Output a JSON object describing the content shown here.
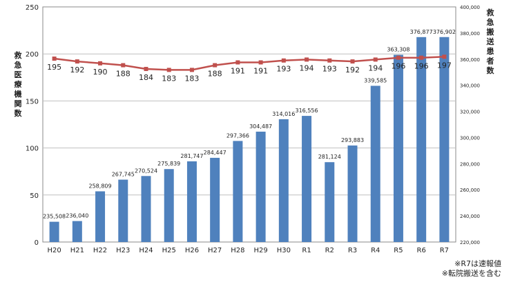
{
  "chart_data": {
    "type": "bar+line",
    "categories": [
      "H20",
      "H21",
      "H22",
      "H23",
      "H24",
      "H25",
      "H26",
      "H27",
      "H28",
      "H29",
      "H30",
      "R1",
      "R2",
      "R3",
      "R4",
      "R5",
      "R6",
      "R7"
    ],
    "bar_series": {
      "values": [
        235508,
        236040,
        258809,
        267745,
        270524,
        275839,
        281747,
        284447,
        297366,
        304487,
        314016,
        316556,
        281124,
        293883,
        339585,
        363308,
        376877,
        376902
      ],
      "labels": [
        "235,508",
        "236,040",
        "258,809",
        "267,745",
        "270,524",
        "275,839",
        "281,747",
        "284,447",
        "297,366",
        "304,487",
        "314,016",
        "316,556",
        "281,124",
        "293,883",
        "339,585",
        "363,308",
        "376,877",
        "376,902"
      ],
      "color": "#4F81BD",
      "axis": "right"
    },
    "line_series": {
      "values": [
        195,
        192,
        190,
        188,
        184,
        183,
        183,
        188,
        191,
        191,
        193,
        194,
        193,
        192,
        194,
        196,
        196,
        197
      ],
      "color": "#C0504D",
      "axis": "left"
    },
    "left_axis": {
      "title": "救急医療機関数",
      "min": 0,
      "max": 250,
      "ticks": [
        "0",
        "50",
        "100",
        "150",
        "200",
        "250"
      ]
    },
    "right_axis": {
      "title": "救急搬送患者数",
      "min": 220000,
      "max": 400000,
      "ticks": [
        "220,000",
        "240,000",
        "260,000",
        "280,000",
        "300,000",
        "320,000",
        "340,000",
        "360,000",
        "380,000",
        "400,000"
      ]
    },
    "grid": true
  },
  "notes": [
    "※R7は速報値",
    "※転院搬送を含む"
  ]
}
